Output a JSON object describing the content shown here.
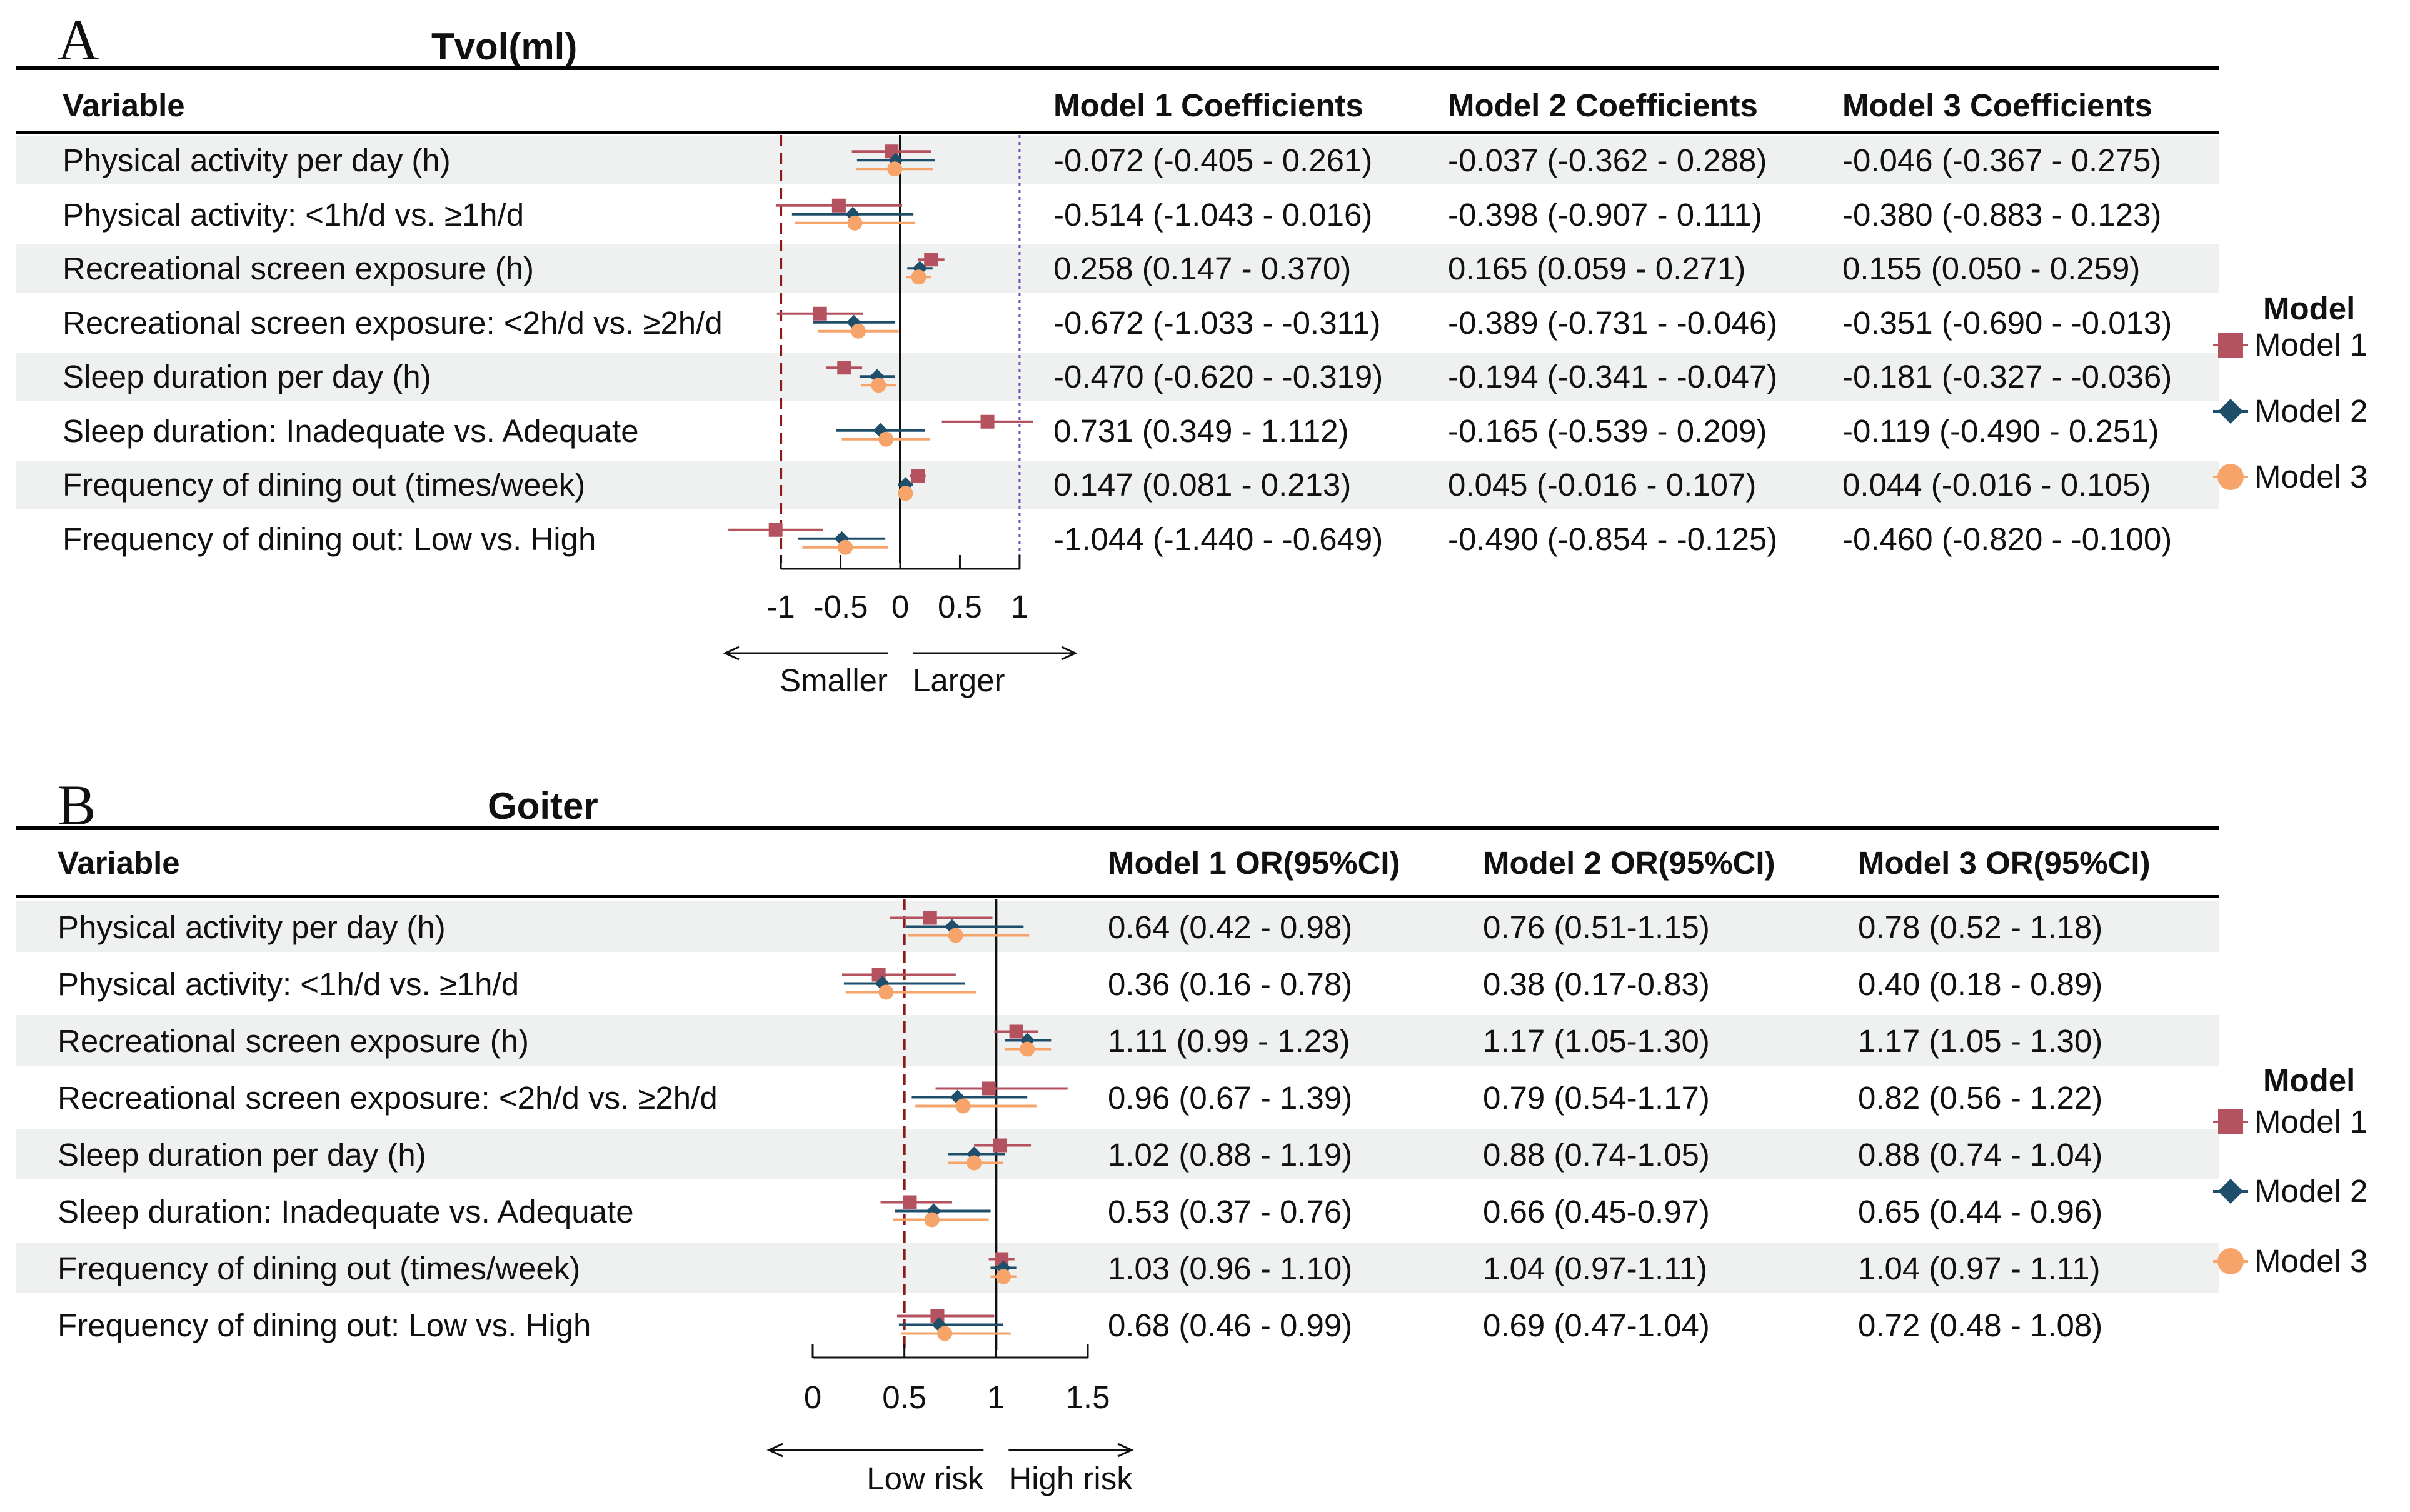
{
  "chart_data": [
    {
      "type": "forest",
      "panel_letter": "A",
      "title": "Tvol(ml)",
      "reference_value": 0,
      "dashed_reference_value": -1,
      "dotted_reference_value": 1,
      "xlim": [
        -1.1,
        1.1
      ],
      "ticks": [
        "-1",
        "-0.5",
        "0",
        "0.5",
        "1"
      ],
      "tick_values": [
        -1,
        -0.5,
        0,
        0.5,
        1
      ],
      "direction_left": "Smaller",
      "direction_right": "Larger",
      "columns": [
        "Variable",
        "Model 1 Coefficients",
        "Model 2 Coefficients",
        "Model 3 Coefficients"
      ],
      "rows": [
        {
          "variable": "Physical activity per day (h)",
          "estimates": [
            [
              -0.072,
              -0.405,
              0.261
            ],
            [
              -0.037,
              -0.362,
              0.288
            ],
            [
              -0.046,
              -0.367,
              0.275
            ]
          ],
          "texts": [
            "-0.072 (-0.405 - 0.261)",
            "-0.037 (-0.362 - 0.288)",
            "-0.046 (-0.367 - 0.275)"
          ]
        },
        {
          "variable": "Physical activity: <1h/d vs. ≥1h/d",
          "estimates": [
            [
              -0.514,
              -1.043,
              0.016
            ],
            [
              -0.398,
              -0.907,
              0.111
            ],
            [
              -0.38,
              -0.883,
              0.123
            ]
          ],
          "texts": [
            "-0.514 (-1.043 - 0.016)",
            "-0.398 (-0.907 - 0.111)",
            "-0.380 (-0.883 - 0.123)"
          ]
        },
        {
          "variable": "Recreational screen exposure (h)",
          "estimates": [
            [
              0.258,
              0.147,
              0.37
            ],
            [
              0.165,
              0.059,
              0.271
            ],
            [
              0.155,
              0.05,
              0.259
            ]
          ],
          "texts": [
            "0.258 (0.147 - 0.370)",
            "0.165 (0.059 - 0.271)",
            "0.155 (0.050 - 0.259)"
          ]
        },
        {
          "variable": "Recreational screen exposure: <2h/d vs. ≥2h/d",
          "estimates": [
            [
              -0.672,
              -1.033,
              -0.311
            ],
            [
              -0.389,
              -0.731,
              -0.046
            ],
            [
              -0.351,
              -0.69,
              -0.013
            ]
          ],
          "texts": [
            "-0.672 (-1.033 - -0.311)",
            "-0.389 (-0.731 - -0.046)",
            "-0.351 (-0.690 - -0.013)"
          ]
        },
        {
          "variable": "Sleep duration per day (h)",
          "estimates": [
            [
              -0.47,
              -0.62,
              -0.319
            ],
            [
              -0.194,
              -0.341,
              -0.047
            ],
            [
              -0.181,
              -0.327,
              -0.036
            ]
          ],
          "texts": [
            "-0.470 (-0.620 - -0.319)",
            "-0.194 (-0.341 - -0.047)",
            "-0.181 (-0.327 - -0.036)"
          ]
        },
        {
          "variable": "Sleep duration: Inadequate vs. Adequate",
          "estimates": [
            [
              0.731,
              0.349,
              1.112
            ],
            [
              -0.165,
              -0.539,
              0.209
            ],
            [
              -0.119,
              -0.49,
              0.251
            ]
          ],
          "texts": [
            "0.731 (0.349 - 1.112)",
            "-0.165 (-0.539 - 0.209)",
            "-0.119 (-0.490 - 0.251)"
          ]
        },
        {
          "variable": "Frequency of dining out (times/week)",
          "estimates": [
            [
              0.147,
              0.081,
              0.213
            ],
            [
              0.045,
              -0.016,
              0.107
            ],
            [
              0.044,
              -0.016,
              0.105
            ]
          ],
          "texts": [
            "0.147 (0.081 - 0.213)",
            "0.045 (-0.016 - 0.107)",
            "0.044 (-0.016 - 0.105)"
          ]
        },
        {
          "variable": "Frequency of dining out: Low vs. High",
          "estimates": [
            [
              -1.044,
              -1.44,
              -0.649
            ],
            [
              -0.49,
              -0.854,
              -0.125
            ],
            [
              -0.46,
              -0.82,
              -0.1
            ]
          ],
          "texts": [
            "-1.044 (-1.440 - -0.649)",
            "-0.490 (-0.854 - -0.125)",
            "-0.460 (-0.820 - -0.100)"
          ]
        }
      ]
    },
    {
      "type": "forest",
      "panel_letter": "B",
      "title": "Goiter",
      "reference_value": 1,
      "dashed_reference_value": 0.5,
      "xlim": [
        0,
        1.5
      ],
      "ticks": [
        "0",
        "0.5",
        "1",
        "1.5"
      ],
      "tick_values": [
        0,
        0.5,
        1,
        1.5
      ],
      "direction_left": "Low risk",
      "direction_right": "High risk",
      "columns": [
        "Variable",
        "Model 1 OR(95%CI)",
        "Model 2 OR(95%CI)",
        "Model 3 OR(95%CI)"
      ],
      "rows": [
        {
          "variable": "Physical activity per day (h)",
          "estimates": [
            [
              0.64,
              0.42,
              0.98
            ],
            [
              0.76,
              0.51,
              1.15
            ],
            [
              0.78,
              0.52,
              1.18
            ]
          ],
          "texts": [
            "0.64 (0.42 - 0.98)",
            "0.76 (0.51-1.15)",
            "0.78 (0.52 - 1.18)"
          ]
        },
        {
          "variable": "Physical activity: <1h/d vs. ≥1h/d",
          "estimates": [
            [
              0.36,
              0.16,
              0.78
            ],
            [
              0.38,
              0.17,
              0.83
            ],
            [
              0.4,
              0.18,
              0.89
            ]
          ],
          "texts": [
            "0.36 (0.16 - 0.78)",
            "0.38 (0.17-0.83)",
            "0.40 (0.18 - 0.89)"
          ]
        },
        {
          "variable": "Recreational screen exposure (h)",
          "estimates": [
            [
              1.11,
              0.99,
              1.23
            ],
            [
              1.17,
              1.05,
              1.3
            ],
            [
              1.17,
              1.05,
              1.3
            ]
          ],
          "texts": [
            "1.11 (0.99 - 1.23)",
            "1.17 (1.05-1.30)",
            "1.17 (1.05 - 1.30)"
          ]
        },
        {
          "variable": "Recreational screen exposure: <2h/d vs. ≥2h/d",
          "estimates": [
            [
              0.96,
              0.67,
              1.39
            ],
            [
              0.79,
              0.54,
              1.17
            ],
            [
              0.82,
              0.56,
              1.22
            ]
          ],
          "texts": [
            "0.96 (0.67 - 1.39)",
            "0.79 (0.54-1.17)",
            "0.82 (0.56 - 1.22)"
          ]
        },
        {
          "variable": "Sleep duration per day (h)",
          "estimates": [
            [
              1.02,
              0.88,
              1.19
            ],
            [
              0.88,
              0.74,
              1.05
            ],
            [
              0.88,
              0.74,
              1.04
            ]
          ],
          "texts": [
            "1.02 (0.88 - 1.19)",
            "0.88 (0.74-1.05)",
            "0.88 (0.74 - 1.04)"
          ]
        },
        {
          "variable": "Sleep duration: Inadequate vs. Adequate",
          "estimates": [
            [
              0.53,
              0.37,
              0.76
            ],
            [
              0.66,
              0.45,
              0.97
            ],
            [
              0.65,
              0.44,
              0.96
            ]
          ],
          "texts": [
            "0.53 (0.37 - 0.76)",
            "0.66 (0.45-0.97)",
            "0.65 (0.44 - 0.96)"
          ]
        },
        {
          "variable": "Frequency of dining out (times/week)",
          "estimates": [
            [
              1.03,
              0.96,
              1.1
            ],
            [
              1.04,
              0.97,
              1.11
            ],
            [
              1.04,
              0.97,
              1.11
            ]
          ],
          "texts": [
            "1.03 (0.96 - 1.10)",
            "1.04 (0.97-1.11)",
            "1.04 (0.97 - 1.11)"
          ]
        },
        {
          "variable": "Frequency of dining out: Low vs. High",
          "estimates": [
            [
              0.68,
              0.46,
              0.99
            ],
            [
              0.69,
              0.47,
              1.04
            ],
            [
              0.72,
              0.48,
              1.08
            ]
          ],
          "texts": [
            "0.68 (0.46 - 0.99)",
            "0.69 (0.47-1.04)",
            "0.72 (0.48 - 1.08)"
          ]
        }
      ]
    }
  ],
  "legend": {
    "title": "Model",
    "items": [
      {
        "label": "Model 1",
        "color": "#b5525f",
        "shape": "square"
      },
      {
        "label": "Model 2",
        "color": "#1f4e6b",
        "shape": "diamond"
      },
      {
        "label": "Model 3",
        "color": "#f6a46a",
        "shape": "circle"
      }
    ]
  },
  "colors": {
    "row_shade": "#eef1ef",
    "dashed_line": "#8b1a1a",
    "dotted_line": "#6a4fb3",
    "reference_line": "#111111"
  }
}
